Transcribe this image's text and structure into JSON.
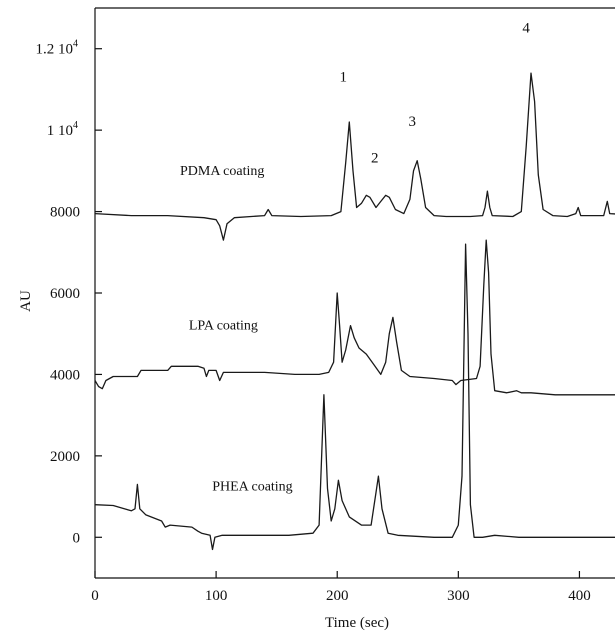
{
  "chart_data": {
    "type": "line",
    "xlabel": "Time (sec)",
    "ylabel": "AU",
    "xlim": [
      0,
      450
    ],
    "ylim": [
      -1000,
      13000
    ],
    "x_ticks": [
      {
        "value": 0,
        "label": "0"
      },
      {
        "value": 100,
        "label": "100"
      },
      {
        "value": 200,
        "label": "200"
      },
      {
        "value": 300,
        "label": "300"
      },
      {
        "value": 400,
        "label": "400"
      }
    ],
    "y_ticks": [
      {
        "value": 0,
        "label": "0",
        "base": "",
        "exp": ""
      },
      {
        "value": 2000,
        "label": "2000",
        "base": "",
        "exp": ""
      },
      {
        "value": 4000,
        "label": "4000",
        "base": "",
        "exp": ""
      },
      {
        "value": 6000,
        "label": "6000",
        "base": "",
        "exp": ""
      },
      {
        "value": 8000,
        "label": "8000",
        "base": "",
        "exp": ""
      },
      {
        "value": 10000,
        "label": "",
        "base": "1 10",
        "exp": "4"
      },
      {
        "value": 12000,
        "label": "",
        "base": "1.2 10",
        "exp": "4"
      }
    ],
    "grid": false,
    "legend": "none",
    "series": [
      {
        "name": "PDMA coating",
        "color": "#1a1a1a",
        "points": [
          [
            0,
            7950
          ],
          [
            30,
            7900
          ],
          [
            60,
            7900
          ],
          [
            90,
            7850
          ],
          [
            100,
            7800
          ],
          [
            103,
            7650
          ],
          [
            106,
            7300
          ],
          [
            109,
            7700
          ],
          [
            115,
            7850
          ],
          [
            140,
            7900
          ],
          [
            143,
            8050
          ],
          [
            146,
            7900
          ],
          [
            170,
            7880
          ],
          [
            195,
            7900
          ],
          [
            203,
            8000
          ],
          [
            207,
            9200
          ],
          [
            210,
            10200
          ],
          [
            213,
            9000
          ],
          [
            216,
            8100
          ],
          [
            220,
            8200
          ],
          [
            224,
            8400
          ],
          [
            227,
            8350
          ],
          [
            232,
            8100
          ],
          [
            236,
            8250
          ],
          [
            240,
            8400
          ],
          [
            243,
            8350
          ],
          [
            248,
            8050
          ],
          [
            255,
            7950
          ],
          [
            260,
            8300
          ],
          [
            263,
            9000
          ],
          [
            266,
            9250
          ],
          [
            269,
            8800
          ],
          [
            273,
            8100
          ],
          [
            280,
            7900
          ],
          [
            290,
            7880
          ],
          [
            310,
            7880
          ],
          [
            320,
            7900
          ],
          [
            322,
            8100
          ],
          [
            324,
            8500
          ],
          [
            326,
            8100
          ],
          [
            328,
            7900
          ],
          [
            345,
            7880
          ],
          [
            352,
            8000
          ],
          [
            356,
            9600
          ],
          [
            360,
            11400
          ],
          [
            363,
            10700
          ],
          [
            366,
            8900
          ],
          [
            370,
            8050
          ],
          [
            378,
            7900
          ],
          [
            390,
            7880
          ],
          [
            397,
            7950
          ],
          [
            399,
            8100
          ],
          [
            401,
            7900
          ],
          [
            420,
            7900
          ],
          [
            423,
            8250
          ],
          [
            425,
            7950
          ],
          [
            450,
            7900
          ]
        ]
      },
      {
        "name": "LPA coating",
        "color": "#1a1a1a",
        "points": [
          [
            0,
            3850
          ],
          [
            3,
            3700
          ],
          [
            6,
            3650
          ],
          [
            9,
            3850
          ],
          [
            15,
            3950
          ],
          [
            35,
            3950
          ],
          [
            38,
            4100
          ],
          [
            60,
            4100
          ],
          [
            63,
            4200
          ],
          [
            85,
            4200
          ],
          [
            90,
            4150
          ],
          [
            92,
            3950
          ],
          [
            94,
            4100
          ],
          [
            100,
            4100
          ],
          [
            103,
            3850
          ],
          [
            106,
            4050
          ],
          [
            115,
            4050
          ],
          [
            140,
            4050
          ],
          [
            165,
            4000
          ],
          [
            185,
            4000
          ],
          [
            193,
            4050
          ],
          [
            197,
            4300
          ],
          [
            200,
            6000
          ],
          [
            202,
            5200
          ],
          [
            204,
            4300
          ],
          [
            207,
            4600
          ],
          [
            211,
            5200
          ],
          [
            214,
            4900
          ],
          [
            218,
            4650
          ],
          [
            224,
            4500
          ],
          [
            230,
            4250
          ],
          [
            236,
            4000
          ],
          [
            240,
            4300
          ],
          [
            243,
            5000
          ],
          [
            246,
            5400
          ],
          [
            249,
            4800
          ],
          [
            253,
            4100
          ],
          [
            260,
            3950
          ],
          [
            280,
            3900
          ],
          [
            295,
            3850
          ],
          [
            298,
            3750
          ],
          [
            302,
            3850
          ],
          [
            315,
            3900
          ],
          [
            318,
            4200
          ],
          [
            321,
            6200
          ],
          [
            323,
            7300
          ],
          [
            325,
            6500
          ],
          [
            327,
            4500
          ],
          [
            330,
            3600
          ],
          [
            340,
            3550
          ],
          [
            348,
            3600
          ],
          [
            352,
            3550
          ],
          [
            360,
            3550
          ],
          [
            380,
            3500
          ],
          [
            450,
            3500
          ]
        ]
      },
      {
        "name": "PHEA coating",
        "color": "#1a1a1a",
        "points": [
          [
            0,
            800
          ],
          [
            15,
            780
          ],
          [
            30,
            650
          ],
          [
            33,
            700
          ],
          [
            35,
            1300
          ],
          [
            37,
            700
          ],
          [
            42,
            550
          ],
          [
            55,
            400
          ],
          [
            58,
            250
          ],
          [
            62,
            300
          ],
          [
            80,
            250
          ],
          [
            85,
            150
          ],
          [
            88,
            100
          ],
          [
            95,
            50
          ],
          [
            97,
            -300
          ],
          [
            99,
            0
          ],
          [
            105,
            50
          ],
          [
            130,
            50
          ],
          [
            160,
            50
          ],
          [
            180,
            100
          ],
          [
            185,
            300
          ],
          [
            189,
            3500
          ],
          [
            192,
            1200
          ],
          [
            195,
            400
          ],
          [
            198,
            700
          ],
          [
            201,
            1400
          ],
          [
            204,
            900
          ],
          [
            210,
            500
          ],
          [
            220,
            300
          ],
          [
            228,
            300
          ],
          [
            232,
            1100
          ],
          [
            234,
            1500
          ],
          [
            237,
            700
          ],
          [
            242,
            100
          ],
          [
            250,
            50
          ],
          [
            280,
            0
          ],
          [
            295,
            0
          ],
          [
            300,
            300
          ],
          [
            303,
            1500
          ],
          [
            306,
            7200
          ],
          [
            308,
            5000
          ],
          [
            310,
            800
          ],
          [
            313,
            0
          ],
          [
            320,
            0
          ],
          [
            330,
            50
          ],
          [
            350,
            0
          ],
          [
            380,
            0
          ],
          [
            450,
            0
          ]
        ]
      }
    ],
    "annotations": [
      {
        "text": "PDMA coating",
        "x": 105,
        "y": 8900
      },
      {
        "text": "LPA coating",
        "x": 106,
        "y": 5100
      },
      {
        "text": "PHEA coating",
        "x": 130,
        "y": 1150
      },
      {
        "text": "1",
        "x": 205,
        "y": 11200
      },
      {
        "text": "2",
        "x": 231,
        "y": 9200
      },
      {
        "text": "3",
        "x": 262,
        "y": 10100
      },
      {
        "text": "4",
        "x": 356,
        "y": 12400
      }
    ]
  }
}
